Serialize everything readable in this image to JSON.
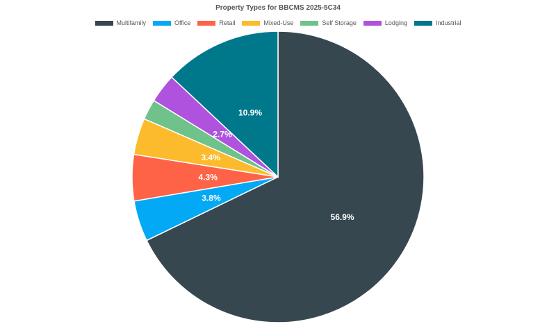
{
  "chart_data": {
    "type": "pie",
    "title": "Property Types for BBCMS 2025-5C34",
    "legend_position": "top",
    "slices": [
      {
        "name": "Multifamily",
        "value": 56.9,
        "label": "56.9%",
        "color": "#37474f"
      },
      {
        "name": "Office",
        "value": 3.8,
        "label": "3.8%",
        "color": "#03a9f4"
      },
      {
        "name": "Retail",
        "value": 4.3,
        "label": "4.3%",
        "color": "#ff6347"
      },
      {
        "name": "Mixed-Use",
        "value": 3.4,
        "label": "3.4%",
        "color": "#fbbb2d"
      },
      {
        "name": "Self Storage",
        "value": 1.9,
        "label": "",
        "color": "#6fc28a"
      },
      {
        "name": "Lodging",
        "value": 2.7,
        "label": "2.7%",
        "color": "#af52de"
      },
      {
        "name": "Industrial",
        "value": 10.9,
        "label": "10.9%",
        "color": "#00788c"
      }
    ]
  }
}
